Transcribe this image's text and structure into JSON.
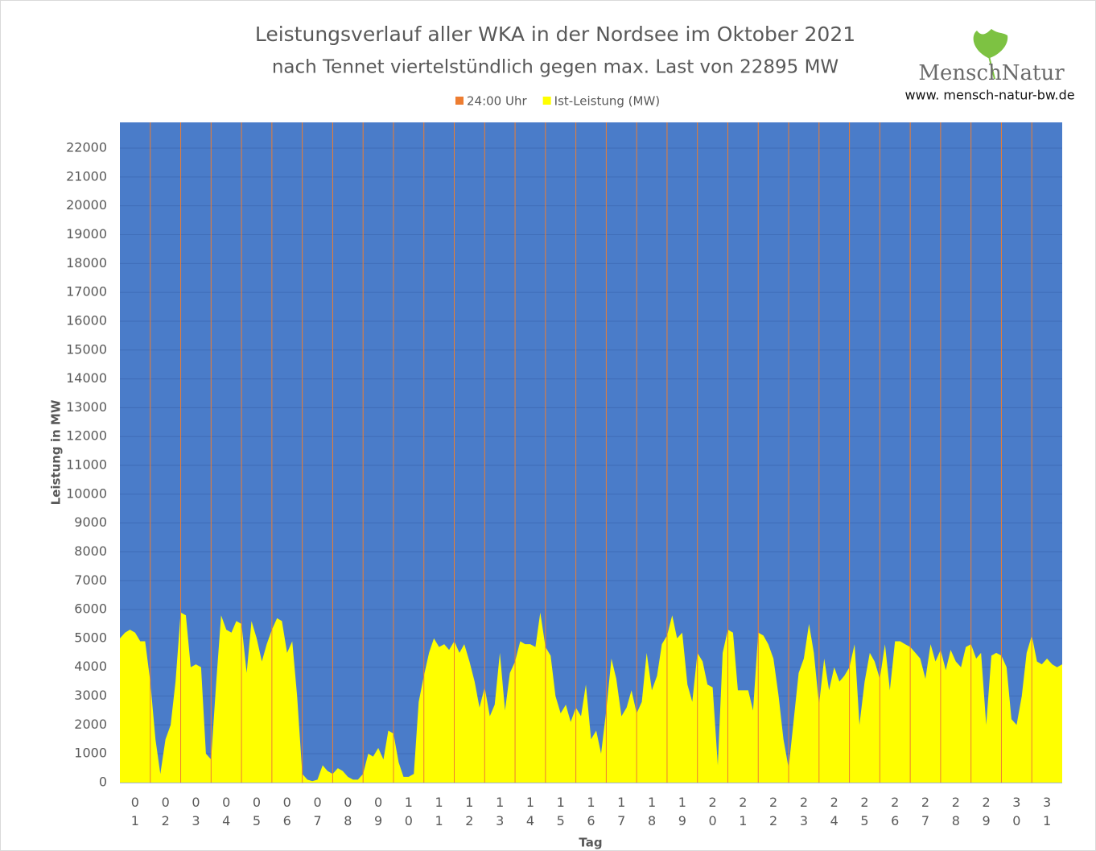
{
  "chart_data": {
    "type": "area",
    "title": [
      "Leistungsverlauf aller WKA in der Nordsee im Oktober 2021",
      "nach Tennet viertelstündlich gegen  max. Last von 22895 MW"
    ],
    "logo": "MenschNatur",
    "website": "www. mensch-natur-bw.de",
    "x_label": "Tag",
    "y_label": "Leistung in MW",
    "categories": [
      "01",
      "02",
      "03",
      "04",
      "05",
      "06",
      "07",
      "08",
      "09",
      "10",
      "11",
      "12",
      "13",
      "14",
      "15",
      "16",
      "17",
      "18",
      "19",
      "20",
      "21",
      "22",
      "23",
      "24",
      "25",
      "26",
      "27",
      "28",
      "29",
      "30",
      "31"
    ],
    "xlim": [
      0,
      31
    ],
    "ylim": [
      0,
      22895
    ],
    "yticks": [
      0,
      1000,
      2000,
      3000,
      4000,
      5000,
      6000,
      7000,
      8000,
      9000,
      10000,
      11000,
      12000,
      13000,
      14000,
      15000,
      16000,
      17000,
      18000,
      19000,
      20000,
      21000,
      22000
    ],
    "grid": true,
    "series": [
      {
        "name": "24:00 Uhr",
        "color": "#ed7d31",
        "kind": "bar",
        "x": [
          1,
          2,
          3,
          4,
          5,
          6,
          7,
          8,
          9,
          10,
          11,
          12,
          13,
          14,
          15,
          16,
          17,
          18,
          19,
          20,
          21,
          22,
          23,
          24,
          25,
          26,
          27,
          28,
          29,
          30
        ],
        "values": [
          22895,
          22895,
          22895,
          22895,
          22895,
          22895,
          22895,
          22895,
          22895,
          22895,
          22895,
          22895,
          22895,
          22895,
          22895,
          22895,
          22895,
          22895,
          22895,
          22895,
          22895,
          22895,
          22895,
          22895,
          22895,
          22895,
          22895,
          22895,
          22895,
          22895
        ]
      },
      {
        "name": "Ist-Leistung (MW)",
        "color": "#ffff00",
        "kind": "area",
        "x": [
          0,
          0.17,
          0.33,
          0.5,
          0.67,
          0.83,
          1,
          1.17,
          1.33,
          1.5,
          1.67,
          1.83,
          2,
          2.17,
          2.33,
          2.5,
          2.67,
          2.83,
          3,
          3.17,
          3.33,
          3.5,
          3.67,
          3.83,
          4,
          4.17,
          4.33,
          4.5,
          4.67,
          4.83,
          5,
          5.17,
          5.33,
          5.5,
          5.67,
          5.83,
          6,
          6.17,
          6.33,
          6.5,
          6.67,
          6.83,
          7,
          7.17,
          7.33,
          7.5,
          7.67,
          7.83,
          8,
          8.17,
          8.33,
          8.5,
          8.67,
          8.83,
          9,
          9.17,
          9.33,
          9.5,
          9.67,
          9.83,
          10,
          10.17,
          10.33,
          10.5,
          10.67,
          10.83,
          11,
          11.17,
          11.33,
          11.5,
          11.67,
          11.83,
          12,
          12.17,
          12.33,
          12.5,
          12.67,
          12.83,
          13,
          13.17,
          13.33,
          13.5,
          13.67,
          13.83,
          14,
          14.17,
          14.33,
          14.5,
          14.67,
          14.83,
          15,
          15.17,
          15.33,
          15.5,
          15.67,
          15.83,
          16,
          16.17,
          16.33,
          16.5,
          16.67,
          16.83,
          17,
          17.17,
          17.33,
          17.5,
          17.67,
          17.83,
          18,
          18.17,
          18.33,
          18.5,
          18.67,
          18.83,
          19,
          19.17,
          19.33,
          19.5,
          19.67,
          19.83,
          20,
          20.17,
          20.33,
          20.5,
          20.67,
          20.83,
          21,
          21.17,
          21.33,
          21.5,
          21.67,
          21.83,
          22,
          22.17,
          22.33,
          22.5,
          22.67,
          22.83,
          23,
          23.17,
          23.33,
          23.5,
          23.67,
          23.83,
          24,
          24.17,
          24.33,
          24.5,
          24.67,
          24.83,
          25,
          25.17,
          25.33,
          25.5,
          25.67,
          25.83,
          26,
          26.17,
          26.33,
          26.5,
          26.67,
          26.83,
          27,
          27.17,
          27.33,
          27.5,
          27.67,
          27.83,
          28,
          28.17,
          28.33,
          28.5,
          28.67,
          28.83,
          29,
          29.17,
          29.33,
          29.5,
          29.67,
          29.83,
          30,
          30.17,
          30.33,
          30.5,
          30.67,
          30.83,
          31
        ],
        "values": [
          5000,
          5200,
          5300,
          5200,
          4900,
          4900,
          3500,
          1500,
          300,
          1500,
          2000,
          3500,
          5900,
          5800,
          4000,
          4100,
          4000,
          1000,
          800,
          3500,
          5800,
          5300,
          5200,
          5600,
          5500,
          3800,
          5600,
          5000,
          4200,
          4800,
          5300,
          5700,
          5600,
          4500,
          4900,
          3000,
          300,
          100,
          50,
          100,
          600,
          400,
          300,
          500,
          400,
          200,
          100,
          100,
          300,
          1000,
          900,
          1200,
          800,
          1800,
          1700,
          700,
          200,
          200,
          300,
          2800,
          3700,
          4500,
          5000,
          4700,
          4800,
          4600,
          4900,
          4500,
          4800,
          4200,
          3500,
          2600,
          3300,
          2300,
          2700,
          4500,
          2500,
          3800,
          4200,
          4900,
          4800,
          4800,
          4700,
          5900,
          4700,
          4400,
          3000,
          2400,
          2700,
          2100,
          2600,
          2300,
          3400,
          1500,
          1800,
          1000,
          2500,
          4300,
          3600,
          2300,
          2600,
          3200,
          2400,
          2800,
          4500,
          3200,
          3700,
          4800,
          5100,
          5800,
          5000,
          5200,
          3400,
          2800,
          4500,
          4200,
          3400,
          3300,
          600,
          4500,
          5300,
          5200,
          3200,
          3200,
          3200,
          2500,
          5200,
          5100,
          4800,
          4300,
          3000,
          1500,
          500,
          2200,
          3800,
          4300,
          5500,
          4500,
          2700,
          4300,
          3200,
          4000,
          3500,
          3700,
          4000,
          4800,
          2000,
          3500,
          4500,
          4200,
          3600,
          4800,
          3200,
          4900,
          4900,
          4800,
          4700,
          4500,
          4300,
          3600,
          4800,
          4200,
          4600,
          3900,
          4600,
          4200,
          4000,
          4700,
          4800,
          4300,
          4500,
          2000,
          4400,
          4500,
          4400,
          4000,
          2200,
          2000,
          3000,
          4500,
          5100,
          4200,
          4100,
          4300,
          4100,
          4000,
          4100
        ]
      }
    ]
  }
}
